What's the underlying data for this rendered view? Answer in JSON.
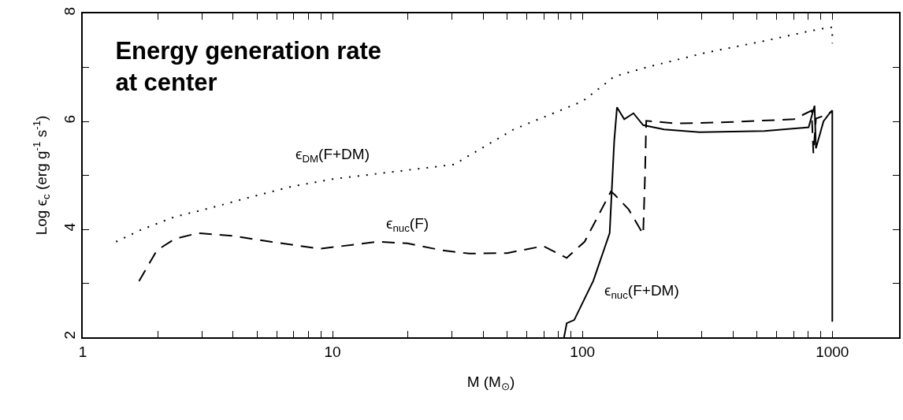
{
  "chart_data": {
    "type": "line",
    "title": "Energy generation rate\nat center",
    "xlabel": "M (M$_{⊙}$)",
    "ylabel": "Log ϵ$_{c}$ (erg g$^{-1}$ s$^{-1}$)",
    "log": "x",
    "xlim": [
      1,
      1850
    ],
    "ylim": [
      2,
      8
    ],
    "xticks": [
      1,
      {
        "value": 2,
        "label": null
      },
      {
        "value": 3,
        "label": null
      },
      {
        "value": 4,
        "label": null
      },
      {
        "value": 5,
        "label": null
      },
      {
        "value": 6,
        "label": null
      },
      {
        "value": 7,
        "label": null
      },
      {
        "value": 8,
        "label": null
      },
      {
        "value": 9,
        "label": null
      },
      10,
      {
        "value": 20,
        "label": null
      },
      {
        "value": 30,
        "label": null
      },
      {
        "value": 40,
        "label": null
      },
      {
        "value": 50,
        "label": null
      },
      {
        "value": 60,
        "label": null
      },
      {
        "value": 70,
        "label": null
      },
      {
        "value": 80,
        "label": null
      },
      {
        "value": 90,
        "label": null
      },
      100,
      {
        "value": 200,
        "label": null
      },
      {
        "value": 300,
        "label": null
      },
      {
        "value": 400,
        "label": null
      },
      {
        "value": 500,
        "label": null
      },
      {
        "value": 600,
        "label": null
      },
      {
        "value": 700,
        "label": null
      },
      {
        "value": 800,
        "label": null
      },
      {
        "value": 900,
        "label": null
      },
      1000
    ],
    "yticks": [
      2,
      {
        "value": 3,
        "label": null
      },
      4,
      {
        "value": 5,
        "label": null
      },
      6,
      {
        "value": 7,
        "label": null
      },
      8
    ],
    "grid": false,
    "legend": false,
    "marker": "none",
    "series": [
      {
        "name": "ϵ$_{DM}$(F+DM)",
        "color": "#000000",
        "line_style": "dotted",
        "x": [
          1.36,
          1.69,
          2.33,
          3.21,
          4.55,
          6.81,
          10,
          30.6,
          53,
          100,
          134,
          180,
          310,
          535,
          826,
          972,
          1000,
          1000
        ],
        "values": [
          3.77,
          3.98,
          4.23,
          4.39,
          4.58,
          4.79,
          4.93,
          5.2,
          5.85,
          6.37,
          6.83,
          7.0,
          7.27,
          7.49,
          7.68,
          7.74,
          7.74,
          7.44
        ]
      },
      {
        "name": "ϵ$_{nuc}$(F)",
        "color": "#000000",
        "line_style": "dashed",
        "x": [
          1.68,
          1.98,
          2.33,
          2.89,
          3.98,
          5.65,
          8.9,
          15.2,
          19.9,
          27.5,
          35.3,
          50,
          69.7,
          86.5,
          102,
          130,
          134,
          153,
          175,
          178,
          180,
          237,
          408,
          703,
          826,
          840,
          860,
          920,
          1000
        ],
        "values": [
          3.04,
          3.61,
          3.82,
          3.93,
          3.88,
          3.77,
          3.64,
          3.77,
          3.74,
          3.61,
          3.55,
          3.56,
          3.69,
          3.47,
          3.77,
          4.7,
          4.65,
          4.37,
          3.91,
          5.0,
          6.01,
          5.96,
          5.99,
          6.04,
          6.2,
          5.41,
          6.05,
          6.1,
          6.18
        ]
      },
      {
        "name": "ϵ$_{nuc}$(F+DM)",
        "color": "#000000",
        "line_style": "solid",
        "x": [
          84.4,
          86.5,
          92.7,
          110.6,
          128.5,
          134,
          137.5,
          147,
          160,
          175,
          212,
          294,
          535,
          804,
          849,
          860,
          922,
          986,
          1000,
          1000
        ],
        "values": [
          2.0,
          2.26,
          2.32,
          3.05,
          3.93,
          5.63,
          6.26,
          6.04,
          6.15,
          5.93,
          5.85,
          5.8,
          5.82,
          5.89,
          6.29,
          5.5,
          6.0,
          6.18,
          6.2,
          2.29
        ]
      }
    ]
  }
}
